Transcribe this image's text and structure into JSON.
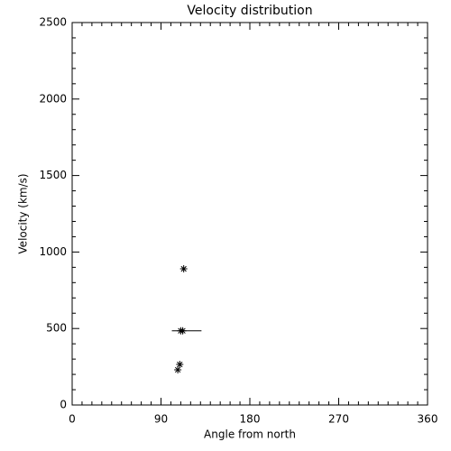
{
  "chart_data": {
    "type": "scatter",
    "title": "Velocity distribution",
    "x_label": "Angle from north",
    "y_label": "Velocity (km/s)",
    "x": [
      113,
      112,
      110,
      109,
      107
    ],
    "y": [
      890,
      485,
      485,
      265,
      230
    ],
    "hline": {
      "x": [
        101,
        131
      ],
      "y": 485
    },
    "color": "#000000",
    "xlim": [
      0,
      360
    ],
    "xticks": [
      0,
      90,
      180,
      270,
      360
    ],
    "ylim": [
      0,
      2500
    ],
    "yticks": [
      0,
      500,
      1000,
      1500,
      2000,
      2500
    ],
    "grid": false
  }
}
